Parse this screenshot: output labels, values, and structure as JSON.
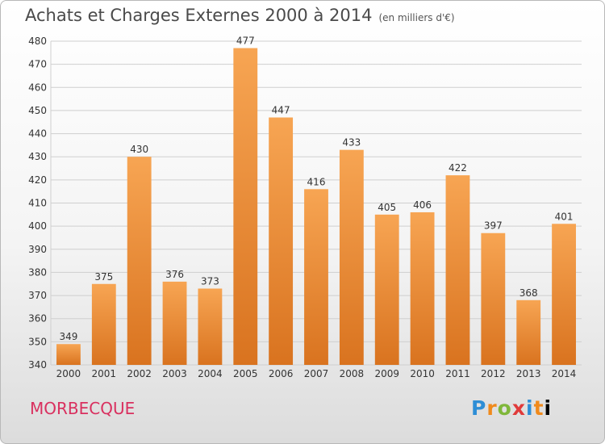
{
  "header": {
    "title": "Achats et Charges Externes 2000 à 2014",
    "unit": "(en milliers d'€)"
  },
  "footer": {
    "commune": "MORBECQUE",
    "logo": "Proxiti"
  },
  "colors": {
    "bar_light": "#f7a553",
    "bar_dark": "#d9731f",
    "grid": "#cfcfcf",
    "axis_text": "#333333",
    "commune": "#d9305f"
  },
  "chart_data": {
    "type": "bar",
    "title": "Achats et Charges Externes 2000 à 2014",
    "subtitle": "(en milliers d'€)",
    "categories": [
      "2000",
      "2001",
      "2002",
      "2003",
      "2004",
      "2005",
      "2006",
      "2007",
      "2008",
      "2009",
      "2010",
      "2011",
      "2012",
      "2013",
      "2014"
    ],
    "values": [
      349,
      375,
      430,
      376,
      373,
      477,
      447,
      416,
      433,
      405,
      406,
      422,
      397,
      368,
      401
    ],
    "ylim": [
      340,
      480
    ],
    "yticks": [
      340,
      350,
      360,
      370,
      380,
      390,
      400,
      410,
      420,
      430,
      440,
      450,
      460,
      470,
      480
    ],
    "grid": true,
    "data_labels": true
  }
}
